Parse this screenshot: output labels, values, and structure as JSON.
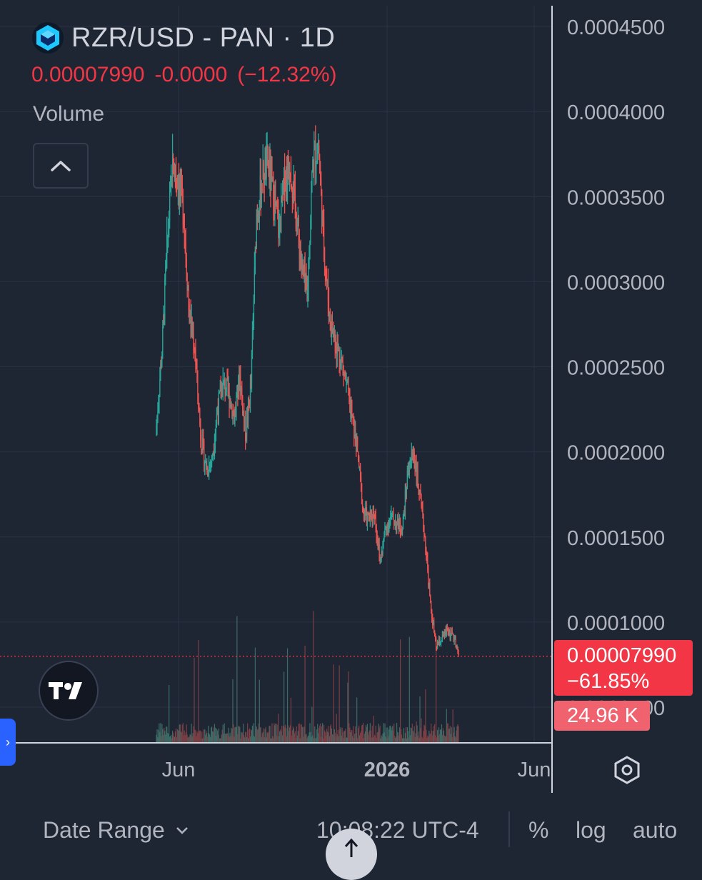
{
  "header": {
    "symbol": "RZR/USD - PAN · 1D",
    "price": "0.00007990",
    "change": "-0.0000",
    "change_pct": "(−12.32%)",
    "volume_label": "Volume"
  },
  "price_label": {
    "price": "0.00007990",
    "pct": "−61.85%"
  },
  "volume_label": "24.96 K",
  "footer": {
    "date_range": "Date Range",
    "time": "10:08:22 UTC-4",
    "percent": "%",
    "log": "log",
    "auto": "auto"
  },
  "colors": {
    "up": "#26a69a",
    "down": "#ef5350",
    "accent": "#2962ff",
    "last": "#f23645"
  },
  "chart_data": {
    "type": "candlestick",
    "yticks": [
      "0.0004500",
      "0.0004000",
      "0.0003500",
      "0.0003000",
      "0.0002500",
      "0.0002000",
      "0.0001500",
      "0.0001000",
      "0.0000500"
    ],
    "ylim": [
      5e-05,
      0.00045
    ],
    "xticks": [
      "Jun",
      "2026",
      "Jun"
    ],
    "last_price": 7.99e-05,
    "series": [
      {
        "name": "RZR/USD",
        "close_path": [
          [
            0.00021,
            0.000255
          ],
          [
            0.00025,
            0.00032
          ],
          [
            0.00032,
            0.00037
          ],
          [
            0.00037,
            0.00036
          ],
          [
            0.00036,
            0.00034
          ],
          [
            0.00034,
            0.00028
          ],
          [
            0.00028,
            0.00026
          ],
          [
            0.00026,
            0.00021
          ],
          [
            0.00021,
            0.00019
          ],
          [
            0.00019,
            0.000195
          ],
          [
            0.000195,
            0.000225
          ],
          [
            0.000225,
            0.00024
          ],
          [
            0.00024,
            0.000235
          ],
          [
            0.000235,
            0.00022
          ],
          [
            0.00022,
            0.000245
          ],
          [
            0.000245,
            0.00021
          ],
          [
            0.00021,
            0.00024
          ],
          [
            0.00024,
            0.00034
          ],
          [
            0.00034,
            0.00036
          ],
          [
            0.00036,
            0.00037
          ],
          [
            0.00037,
            0.00035
          ],
          [
            0.00035,
            0.00033
          ],
          [
            0.00033,
            0.00036
          ],
          [
            0.00036,
            0.00037
          ],
          [
            0.00037,
            0.00034
          ],
          [
            0.00034,
            0.00031
          ],
          [
            0.00031,
            0.00029
          ],
          [
            0.00029,
            0.00037
          ],
          [
            0.00037,
            0.00038
          ],
          [
            0.00038,
            0.00032
          ],
          [
            0.00032,
            0.00028
          ],
          [
            0.00028,
            0.000265
          ],
          [
            0.000265,
            0.000255
          ],
          [
            0.000255,
            0.00024
          ],
          [
            0.00024,
            0.00022
          ],
          [
            0.00022,
            0.0002
          ],
          [
            0.0002,
            0.000165
          ],
          [
            0.000165,
            0.00016
          ],
          [
            0.00016,
            0.000165
          ],
          [
            0.000165,
            0.000135
          ],
          [
            0.000135,
            0.000155
          ],
          [
            0.000155,
            0.000162
          ],
          [
            0.000162,
            0.000158
          ],
          [
            0.000158,
            0.000155
          ],
          [
            0.000155,
            0.00019
          ],
          [
            0.00019,
            0.0002
          ],
          [
            0.0002,
            0.000175
          ],
          [
            0.000175,
            0.00015
          ],
          [
            0.00015,
            0.00011
          ],
          [
            0.00011,
            8.5e-05
          ],
          [
            8.5e-05,
            9e-05
          ],
          [
            9e-05,
            9.5e-05
          ],
          [
            9.5e-05,
            9.2e-05
          ],
          [
            9.2e-05,
            7.99e-05
          ]
        ]
      }
    ]
  }
}
